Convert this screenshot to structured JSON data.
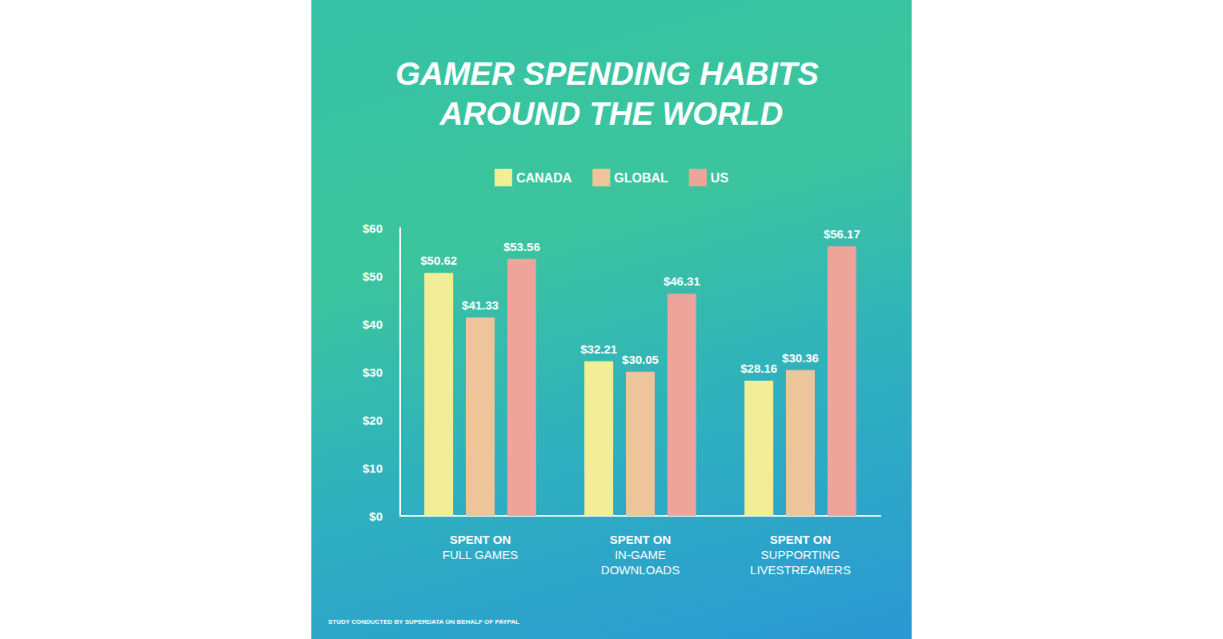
{
  "chart_data": {
    "type": "bar",
    "title": "GAMER SPENDING HABITS AROUND THE WORLD",
    "annotations": [
      "STUDY CONDUCTED BY SUPERDATA ON BEHALF OF PAYPAL"
    ],
    "categories": [
      "SPENT ON\nFULL GAMES",
      "SPENT ON\nIN-GAME\nDOWNLOADS",
      "SPENT ON\nSUPPORTING\nLIVESTREAMERS"
    ],
    "series": [
      {
        "name": "CANADA",
        "color": "#f2ee98",
        "values": [
          50.62,
          32.21,
          28.16
        ],
        "value_labels": [
          "$50.62",
          "$32.21",
          "$28.16"
        ]
      },
      {
        "name": "GLOBAL",
        "color": "#eec59a",
        "values": [
          41.33,
          30.05,
          30.36
        ],
        "value_labels": [
          "$41.33",
          "$30.05",
          "$30.36"
        ]
      },
      {
        "name": "US",
        "color": "#eca49b",
        "values": [
          53.56,
          46.31,
          56.17
        ],
        "value_labels": [
          "$53.56",
          "$46.31",
          "$56.17"
        ]
      }
    ],
    "ylim": [
      0,
      60
    ],
    "yticks": [
      {
        "value": 0,
        "label": "$0"
      },
      {
        "value": 10,
        "label": "$10"
      },
      {
        "value": 20,
        "label": "$20"
      },
      {
        "value": 30,
        "label": "$30"
      },
      {
        "value": 40,
        "label": "$40"
      },
      {
        "value": 50,
        "label": "$50"
      },
      {
        "value": 60,
        "label": "$60"
      }
    ],
    "grid": false,
    "legend": "top",
    "data_labels": true
  }
}
